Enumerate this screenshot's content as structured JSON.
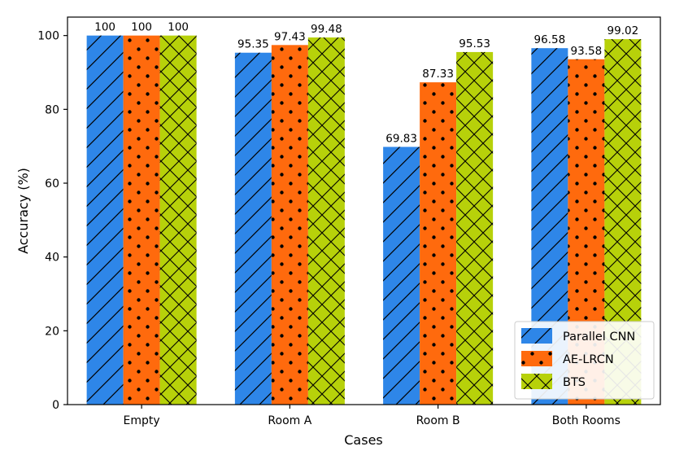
{
  "chart_data": {
    "type": "bar",
    "title": "",
    "xlabel": "Cases",
    "ylabel": "Accuracy (%)",
    "categories": [
      "Empty",
      "Room A",
      "Room B",
      "Both Rooms"
    ],
    "series": [
      {
        "name": "Parallel CNN",
        "values": [
          100,
          95.35,
          69.83,
          96.58
        ],
        "labels": [
          "100",
          "95.35",
          "69.83",
          "96.58"
        ],
        "color": "#2e86e8",
        "hatch": "diagonal"
      },
      {
        "name": "AE-LRCN",
        "values": [
          100,
          97.43,
          87.33,
          93.58
        ],
        "labels": [
          "100",
          "97.43",
          "87.33",
          "93.58"
        ],
        "color": "#ff6a0d",
        "hatch": "dots"
      },
      {
        "name": "BTS",
        "values": [
          100,
          99.48,
          95.53,
          99.02
        ],
        "labels": [
          "100",
          "99.48",
          "95.53",
          "99.02"
        ],
        "color": "#b7d10a",
        "hatch": "crosshatch"
      }
    ],
    "ylim": [
      0,
      105
    ],
    "yticks": [
      0,
      20,
      40,
      60,
      80,
      100
    ],
    "ytick_labels": [
      "0",
      "20",
      "40",
      "60",
      "80",
      "100"
    ],
    "legend_position": "bottom-right",
    "grid": false
  }
}
